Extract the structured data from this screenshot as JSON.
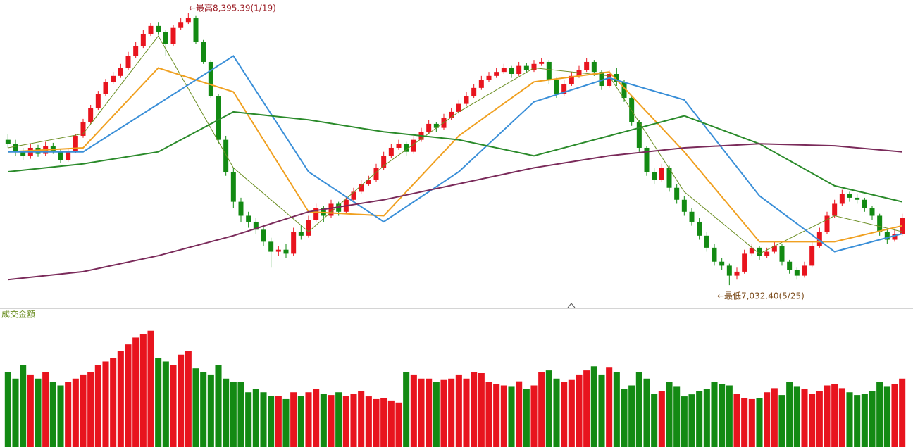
{
  "chart_data": [
    {
      "type": "candlestick",
      "up_color": "#e8141e",
      "down_color": "#138a13",
      "ylim": [
        6920,
        8460
      ],
      "annotations": [
        "←最高8,395.39(1/19)",
        "←最低7,032.40(5/25)"
      ],
      "candles": {
        "open": [
          7760,
          7740,
          7700,
          7680,
          7720,
          7690,
          7730,
          7700,
          7660,
          7700,
          7780,
          7850,
          7920,
          7990,
          8050,
          8080,
          8120,
          8180,
          8230,
          8290,
          8330,
          8300,
          8240,
          8320,
          8350,
          8370,
          8250,
          8150,
          7980,
          7760,
          7600,
          7450,
          7380,
          7350,
          7310,
          7250,
          7200,
          7210,
          7190,
          7300,
          7280,
          7360,
          7420,
          7380,
          7440,
          7400,
          7460,
          7500,
          7540,
          7560,
          7620,
          7680,
          7720,
          7740,
          7700,
          7760,
          7800,
          7840,
          7820,
          7870,
          7900,
          7940,
          7980,
          8020,
          8060,
          8080,
          8100,
          8120,
          8090,
          8130,
          8110,
          8140,
          8150,
          8060,
          7990,
          8040,
          8080,
          8110,
          8150,
          8100,
          8030,
          8090,
          8050,
          7970,
          7850,
          7720,
          7600,
          7560,
          7620,
          7520,
          7460,
          7400,
          7350,
          7280,
          7220,
          7150,
          7130,
          7080,
          7100,
          7190,
          7220,
          7180,
          7200,
          7230,
          7150,
          7110,
          7080,
          7130,
          7230,
          7300,
          7380,
          7440,
          7490,
          7470,
          7460,
          7420,
          7380,
          7300,
          7260,
          7290
        ],
        "high": [
          7790,
          7760,
          7720,
          7740,
          7735,
          7750,
          7745,
          7715,
          7715,
          7790,
          7865,
          7935,
          8005,
          8065,
          8100,
          8140,
          8200,
          8250,
          8310,
          8345,
          8350,
          8310,
          8335,
          8370,
          8395.39,
          8380,
          8260,
          8160,
          7990,
          7780,
          7620,
          7470,
          7400,
          7370,
          7330,
          7270,
          7230,
          7240,
          7320,
          7330,
          7380,
          7440,
          7430,
          7460,
          7450,
          7480,
          7520,
          7560,
          7580,
          7640,
          7700,
          7740,
          7760,
          7750,
          7780,
          7820,
          7860,
          7850,
          7890,
          7920,
          7960,
          8000,
          8040,
          8080,
          8100,
          8120,
          8140,
          8130,
          8150,
          8145,
          8160,
          8170,
          8160,
          8070,
          8060,
          8100,
          8130,
          8170,
          8160,
          8110,
          8110,
          8120,
          8060,
          7980,
          7860,
          7730,
          7620,
          7640,
          7630,
          7540,
          7480,
          7420,
          7370,
          7300,
          7240,
          7170,
          7140,
          7120,
          7210,
          7240,
          7230,
          7220,
          7250,
          7240,
          7160,
          7120,
          7150,
          7250,
          7320,
          7400,
          7460,
          7510,
          7500,
          7490,
          7470,
          7430,
          7390,
          7310,
          7310,
          7390
        ],
        "low": [
          7720,
          7680,
          7660,
          7665,
          7675,
          7680,
          7690,
          7645,
          7650,
          7695,
          7770,
          7840,
          7910,
          7980,
          8040,
          8070,
          8110,
          8170,
          8220,
          8280,
          8285,
          8180,
          8230,
          8310,
          8340,
          8240,
          8140,
          7970,
          7740,
          7580,
          7420,
          7350,
          7320,
          7290,
          7230,
          7120,
          7180,
          7170,
          7180,
          7260,
          7270,
          7350,
          7350,
          7370,
          7380,
          7390,
          7450,
          7490,
          7530,
          7550,
          7610,
          7670,
          7710,
          7680,
          7690,
          7750,
          7790,
          7800,
          7810,
          7860,
          7890,
          7930,
          7970,
          8010,
          8050,
          8070,
          8090,
          8070,
          8080,
          8095,
          8100,
          8130,
          8040,
          7970,
          7980,
          8030,
          8070,
          8100,
          8080,
          8010,
          8020,
          8030,
          7950,
          7830,
          7700,
          7580,
          7540,
          7550,
          7500,
          7440,
          7380,
          7330,
          7260,
          7200,
          7130,
          7110,
          7032.4,
          7060,
          7090,
          7180,
          7160,
          7170,
          7190,
          7130,
          7090,
          7060,
          7070,
          7120,
          7220,
          7290,
          7370,
          7430,
          7450,
          7440,
          7400,
          7360,
          7280,
          7240,
          7250,
          7280
        ],
        "close": [
          7740,
          7700,
          7680,
          7720,
          7690,
          7730,
          7700,
          7660,
          7700,
          7780,
          7850,
          7920,
          7990,
          8050,
          8080,
          8120,
          8180,
          8230,
          8290,
          8330,
          8300,
          8240,
          8320,
          8350,
          8370,
          8250,
          8150,
          7980,
          7760,
          7600,
          7450,
          7380,
          7350,
          7310,
          7250,
          7200,
          7210,
          7190,
          7300,
          7280,
          7360,
          7420,
          7380,
          7440,
          7400,
          7460,
          7500,
          7540,
          7560,
          7620,
          7680,
          7720,
          7740,
          7700,
          7760,
          7800,
          7840,
          7820,
          7870,
          7900,
          7940,
          7980,
          8020,
          8060,
          8080,
          8100,
          8120,
          8090,
          8130,
          8110,
          8140,
          8150,
          8060,
          7990,
          8040,
          8080,
          8110,
          8150,
          8100,
          8030,
          8090,
          8050,
          7970,
          7850,
          7720,
          7600,
          7560,
          7620,
          7520,
          7460,
          7400,
          7350,
          7280,
          7220,
          7150,
          7130,
          7080,
          7100,
          7190,
          7220,
          7180,
          7200,
          7230,
          7150,
          7110,
          7080,
          7130,
          7230,
          7300,
          7380,
          7440,
          7490,
          7470,
          7460,
          7420,
          7380,
          7300,
          7260,
          7290,
          7370
        ]
      },
      "series": [
        {
          "color": "#6b8e23",
          "x": [
            0,
            10,
            20,
            30,
            40,
            50,
            60,
            70,
            80,
            90,
            100,
            110,
            119
          ],
          "values": [
            7720,
            7790,
            8280,
            7620,
            7300,
            7630,
            7900,
            8120,
            8080,
            7500,
            7190,
            7380,
            7300
          ]
        },
        {
          "color": "#f0a020",
          "x": [
            0,
            10,
            20,
            30,
            40,
            50,
            60,
            70,
            80,
            90,
            100,
            110,
            119
          ],
          "values": [
            7700,
            7720,
            8120,
            8000,
            7400,
            7380,
            7780,
            8050,
            8100,
            7700,
            7250,
            7250,
            7330
          ]
        },
        {
          "color": "#3a8fd8",
          "x": [
            0,
            10,
            20,
            30,
            40,
            50,
            60,
            70,
            80,
            90,
            100,
            110,
            119
          ],
          "values": [
            7700,
            7700,
            7940,
            8180,
            7600,
            7350,
            7600,
            7950,
            8070,
            7960,
            7480,
            7200,
            7290
          ]
        },
        {
          "color": "#2a8a2a",
          "x": [
            0,
            10,
            20,
            30,
            40,
            50,
            60,
            70,
            80,
            90,
            100,
            110,
            119
          ],
          "values": [
            7600,
            7640,
            7700,
            7900,
            7860,
            7800,
            7760,
            7680,
            7780,
            7880,
            7740,
            7530,
            7450
          ]
        },
        {
          "color": "#7a2a5a",
          "x": [
            0,
            10,
            20,
            30,
            40,
            50,
            60,
            70,
            80,
            90,
            100,
            110,
            119
          ],
          "values": [
            7060,
            7100,
            7180,
            7280,
            7400,
            7460,
            7540,
            7620,
            7680,
            7720,
            7740,
            7730,
            7700
          ]
        }
      ]
    },
    {
      "type": "bar",
      "title": "成交金額",
      "up_color": "#e8141e",
      "down_color": "#138a13",
      "ylim": [
        0,
        180
      ],
      "values": [
        110,
        100,
        120,
        105,
        100,
        110,
        95,
        90,
        95,
        100,
        105,
        110,
        120,
        125,
        130,
        140,
        150,
        160,
        165,
        170,
        130,
        125,
        120,
        135,
        140,
        115,
        110,
        105,
        120,
        100,
        95,
        95,
        80,
        85,
        80,
        75,
        75,
        70,
        80,
        75,
        80,
        85,
        78,
        76,
        80,
        75,
        78,
        82,
        74,
        70,
        72,
        68,
        65,
        110,
        105,
        100,
        100,
        95,
        98,
        100,
        105,
        100,
        110,
        108,
        95,
        92,
        90,
        88,
        96,
        85,
        90,
        110,
        112,
        100,
        95,
        98,
        105,
        112,
        118,
        105,
        116,
        110,
        85,
        90,
        110,
        100,
        78,
        82,
        95,
        88,
        74,
        77,
        82,
        85,
        95,
        92,
        90,
        78,
        72,
        70,
        72,
        80,
        86,
        76,
        95,
        88,
        85,
        78,
        82,
        90,
        92,
        86,
        80,
        76,
        78,
        82,
        95,
        88,
        92,
        100
      ]
    }
  ]
}
